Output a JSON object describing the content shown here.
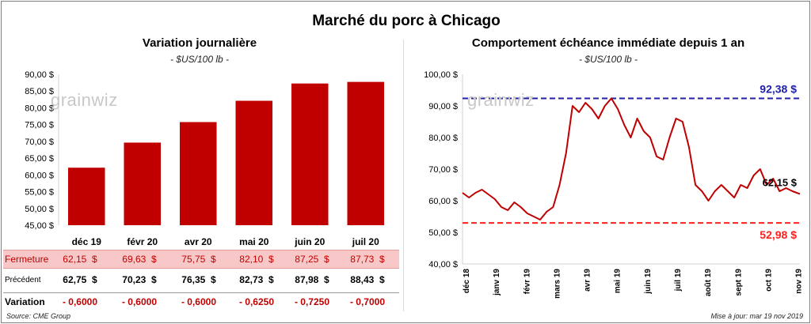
{
  "title": "Marché du porc à Chicago",
  "source": "Source: CME Group",
  "updated": "Mise à jour: mar 19 nov 2019",
  "watermark": "grainwiz",
  "colors": {
    "bar": "#c00000",
    "line": "#c00000",
    "high": "#1f1fa8",
    "low": "#ff2020"
  },
  "chart_data": [
    {
      "type": "bar",
      "title": "Variation  journalière",
      "subtitle": "- $US/100 lb -",
      "categories": [
        "déc 19",
        "févr 20",
        "avr 20",
        "mai 20",
        "juin 20",
        "juil 20"
      ],
      "values": [
        62.15,
        69.63,
        75.75,
        82.1,
        87.25,
        87.73
      ],
      "ylim": [
        45,
        90
      ],
      "yticks": [
        "45,00 $",
        "50,00 $",
        "55,00 $",
        "60,00 $",
        "65,00 $",
        "70,00 $",
        "75,00 $",
        "80,00 $",
        "85,00 $",
        "90,00 $"
      ],
      "grid": false
    },
    {
      "type": "line",
      "title": "Comportement  échéance immédiate depuis 1 an",
      "subtitle": "- $US/100 lb -",
      "x_ticks": [
        "déc 18",
        "janv 19",
        "févr 19",
        "mars 19",
        "avr 19",
        "mai 19",
        "juin 19",
        "juil 19",
        "août 19",
        "sept 19",
        "oct 19",
        "nov 19"
      ],
      "ylim": [
        40,
        100
      ],
      "yticks": [
        "40,00 $",
        "50,00 $",
        "60,00 $",
        "70,00 $",
        "80,00 $",
        "90,00 $",
        "100,00 $"
      ],
      "x": [
        "2018-11-19",
        "2018-11-26",
        "2018-12-03",
        "2018-12-10",
        "2018-12-17",
        "2018-12-24",
        "2018-12-31",
        "2019-01-07",
        "2019-01-14",
        "2019-01-21",
        "2019-01-28",
        "2019-02-04",
        "2019-02-11",
        "2019-02-18",
        "2019-02-25",
        "2019-03-04",
        "2019-03-11",
        "2019-03-18",
        "2019-03-25",
        "2019-04-01",
        "2019-04-08",
        "2019-04-15",
        "2019-04-22",
        "2019-04-29",
        "2019-05-06",
        "2019-05-13",
        "2019-05-20",
        "2019-05-27",
        "2019-06-03",
        "2019-06-10",
        "2019-06-17",
        "2019-06-24",
        "2019-07-01",
        "2019-07-08",
        "2019-07-15",
        "2019-07-22",
        "2019-07-29",
        "2019-08-05",
        "2019-08-12",
        "2019-08-19",
        "2019-08-26",
        "2019-09-02",
        "2019-09-09",
        "2019-09-16",
        "2019-09-23",
        "2019-09-30",
        "2019-10-07",
        "2019-10-14",
        "2019-10-21",
        "2019-10-28",
        "2019-11-04",
        "2019-11-11",
        "2019-11-19"
      ],
      "series": [
        {
          "values": [
            62.5,
            61.0,
            62.5,
            63.5,
            62.0,
            60.5,
            58.0,
            57.0,
            59.5,
            58.0,
            56.0,
            55.0,
            54.0,
            56.5,
            58.0,
            65.0,
            75.0,
            90.0,
            88.0,
            91.0,
            89.0,
            86.0,
            90.0,
            92.38,
            89.0,
            84.0,
            80.0,
            86.0,
            82.0,
            80.0,
            74.0,
            73.0,
            80.0,
            86.0,
            85.0,
            77.0,
            65.0,
            63.0,
            60.0,
            63.0,
            65.0,
            63.0,
            61.0,
            65.0,
            64.0,
            68.0,
            70.0,
            65.0,
            67.0,
            63.0,
            64.0,
            63.0,
            62.15
          ]
        }
      ],
      "reference_lines": [
        {
          "label": "92,38 $",
          "value": 92.38,
          "color": "#1f1fa8"
        },
        {
          "label": "52,98 $",
          "value": 52.98,
          "color": "#ff2020"
        }
      ],
      "last_label": "62,15 $",
      "grid": false
    }
  ],
  "table": {
    "rows": [
      {
        "label": "Fermeture",
        "cells": [
          "62,15",
          "69,63",
          "75,75",
          "82,10",
          "87,25",
          "87,73"
        ],
        "suffix": "$"
      },
      {
        "label": "Précédent",
        "cells": [
          "62,75",
          "70,23",
          "76,35",
          "82,73",
          "87,98",
          "88,43"
        ],
        "suffix": "$"
      },
      {
        "label": "Variation",
        "cells": [
          "- 0,6000",
          "- 0,6000",
          "- 0,6000",
          "- 0,6250",
          "- 0,7250",
          "- 0,7000"
        ],
        "suffix": ""
      }
    ]
  }
}
